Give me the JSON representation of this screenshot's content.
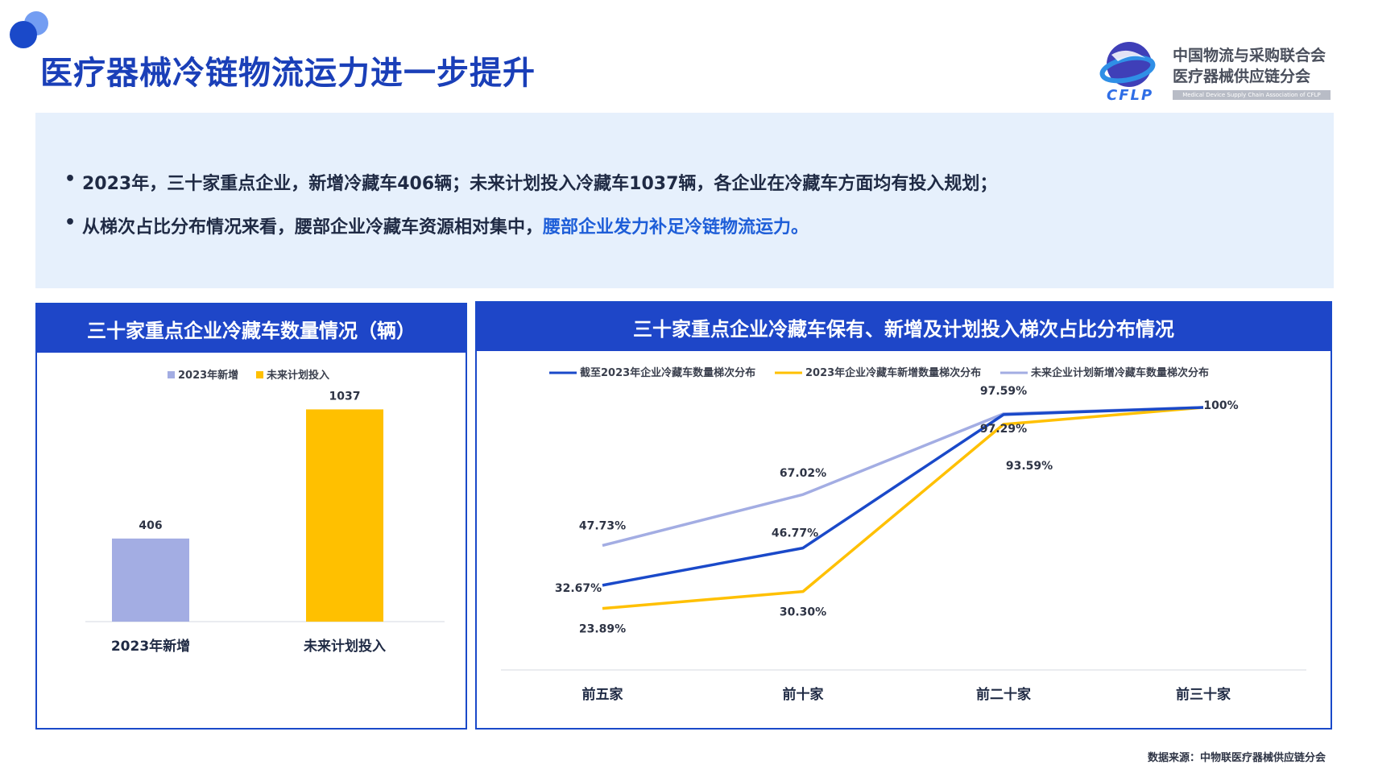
{
  "title": "医疗器械冷链物流运力进一步提升",
  "logo": {
    "line1": "中国物流与采购联合会",
    "line2": "医疗器械供应链分会",
    "acronym": "CFLP",
    "english": "Medical Device Supply Chain Association of CFLP"
  },
  "summary": {
    "bullets": [
      {
        "text": "2023年，三十家重点企业，新增冷藏车406辆；未来计划投入冷藏车1037辆，各企业在冷藏车方面均有投入规划；",
        "highlight": ""
      },
      {
        "text": "从梯次占比分布情况来看，腰部企业冷藏车资源相对集中，",
        "highlight": "腰部企业发力补足冷链物流运力。"
      }
    ]
  },
  "left_panel": {
    "title": "三十家重点企业冷藏车数量情况（辆）"
  },
  "right_panel": {
    "title": "三十家重点企业冷藏车保有、新增及计划投入梯次占比分布情况"
  },
  "chart_data": [
    {
      "type": "bar",
      "categories": [
        "2023年新增",
        "未来计划投入"
      ],
      "values": [
        406,
        1037
      ],
      "legend": [
        "2023年新增",
        "未来计划投入"
      ],
      "colors": [
        "#a3ade3",
        "#ffc000"
      ],
      "value_labels": [
        "406",
        "1037"
      ],
      "legend_position": "top-center"
    },
    {
      "type": "line",
      "categories": [
        "前五家",
        "前十家",
        "前二十家",
        "前三十家"
      ],
      "series": [
        {
          "name": "截至2023年企业冷藏车数量梯次分布",
          "color": "#1a49c9",
          "values": [
            32.67,
            46.77,
            97.29,
            100
          ],
          "labels": [
            "32.67%",
            "46.77%",
            "97.29%",
            "100%"
          ]
        },
        {
          "name": "2023年企业冷藏车新增数量梯次分布",
          "color": "#ffc000",
          "values": [
            23.89,
            30.3,
            93.59,
            100
          ],
          "labels": [
            "23.89%",
            "30.30%",
            "93.59%",
            ""
          ]
        },
        {
          "name": "未来企业计划新增冷藏车数量梯次分布",
          "color": "#a3ade3",
          "values": [
            47.73,
            67.02,
            97.59,
            100
          ],
          "labels": [
            "47.73%",
            "67.02%",
            "97.59%",
            ""
          ]
        }
      ],
      "unit": "%",
      "legend_position": "top-center"
    }
  ],
  "source": "数据来源：中物联医疗器械供应链分会"
}
